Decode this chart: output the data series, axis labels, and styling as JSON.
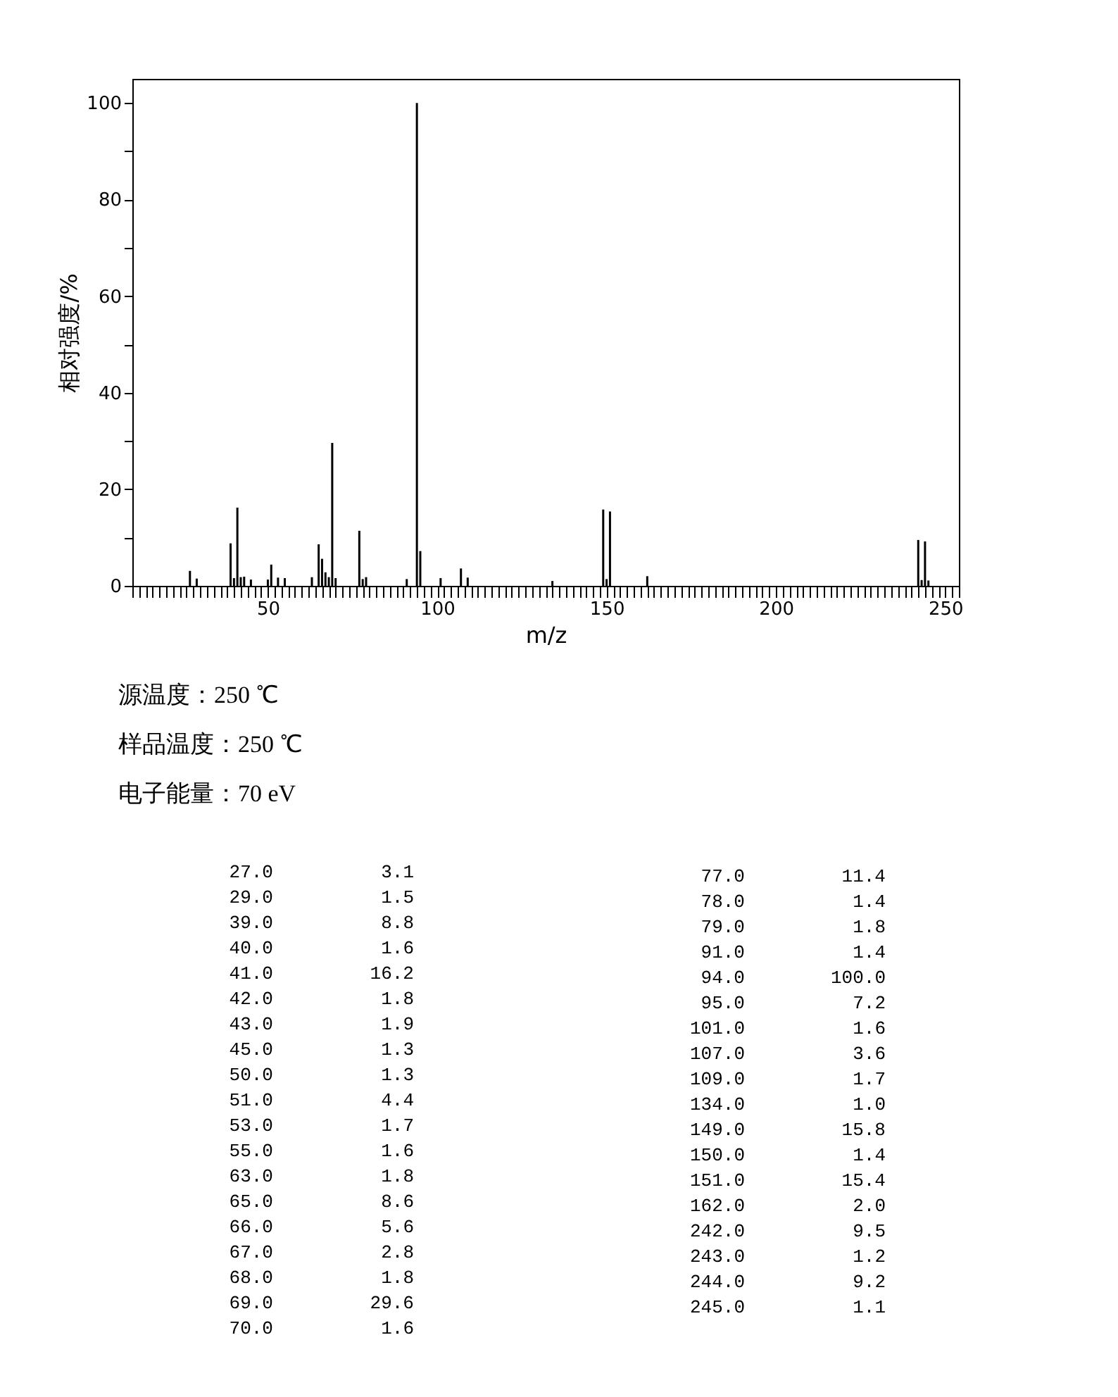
{
  "chart_data": [
    {
      "type": "bar",
      "xlabel": "m/z",
      "ylabel": "相对强度/%",
      "x": [
        27.0,
        29.0,
        39.0,
        40.0,
        41.0,
        42.0,
        43.0,
        45.0,
        50.0,
        51.0,
        53.0,
        55.0,
        63.0,
        65.0,
        66.0,
        67.0,
        68.0,
        69.0,
        70.0,
        77.0,
        78.0,
        79.0,
        91.0,
        94.0,
        95.0,
        101.0,
        107.0,
        109.0,
        134.0,
        149.0,
        150.0,
        151.0,
        162.0,
        242.0,
        243.0,
        244.0,
        245.0
      ],
      "series": [
        {
          "color": "#000000",
          "values": [
            3.1,
            1.5,
            8.8,
            1.6,
            16.2,
            1.8,
            1.9,
            1.3,
            1.3,
            4.4,
            1.7,
            1.6,
            1.8,
            8.6,
            5.6,
            2.8,
            1.8,
            29.6,
            1.6,
            11.4,
            1.4,
            1.8,
            1.4,
            100.0,
            7.2,
            1.6,
            3.6,
            1.7,
            1.0,
            15.8,
            1.4,
            15.4,
            2.0,
            9.5,
            1.2,
            9.2,
            1.1
          ]
        }
      ],
      "xlim": [
        10,
        254
      ],
      "ylim": [
        0,
        105
      ],
      "xticks": [
        50,
        100,
        150,
        200,
        250
      ],
      "yticks": [
        0,
        {
          "value": 10,
          "label": null
        },
        20,
        {
          "value": 30,
          "label": null
        },
        40,
        {
          "value": 50,
          "label": null
        },
        60,
        {
          "value": 70,
          "label": null
        },
        80,
        {
          "value": 90,
          "label": null
        },
        100
      ],
      "grid": false,
      "annotations": [
        "源温度：250 ℃",
        "样品温度：250 ℃",
        "电子能量：70 eV"
      ]
    },
    {
      "type": "other",
      "categories": [
        "27.0",
        "29.0",
        "39.0",
        "40.0",
        "41.0",
        "42.0",
        "43.0",
        "45.0",
        "50.0",
        "51.0",
        "53.0",
        "55.0",
        "63.0",
        "65.0",
        "66.0",
        "67.0",
        "68.0",
        "69.0",
        "70.0",
        "77.0",
        "78.0",
        "79.0",
        "91.0",
        "94.0",
        "95.0",
        "101.0",
        "107.0",
        "109.0",
        "134.0",
        "149.0",
        "150.0",
        "151.0",
        "162.0",
        "242.0",
        "243.0",
        "244.0",
        "245.0"
      ],
      "value_labels": [
        "3.1",
        "1.5",
        "8.8",
        "1.6",
        "16.2",
        "1.8",
        "1.9",
        "1.3",
        "1.3",
        "4.4",
        "1.7",
        "1.6",
        "1.8",
        "8.6",
        "5.6",
        "2.8",
        "1.8",
        "29.6",
        "1.6",
        "11.4",
        "1.4",
        "1.8",
        "1.4",
        "100.0",
        "7.2",
        "1.6",
        "3.6",
        "1.7",
        "1.0",
        "15.8",
        "1.4",
        "15.4",
        "2.0",
        "9.5",
        "1.2",
        "9.2",
        "1.1"
      ]
    }
  ]
}
